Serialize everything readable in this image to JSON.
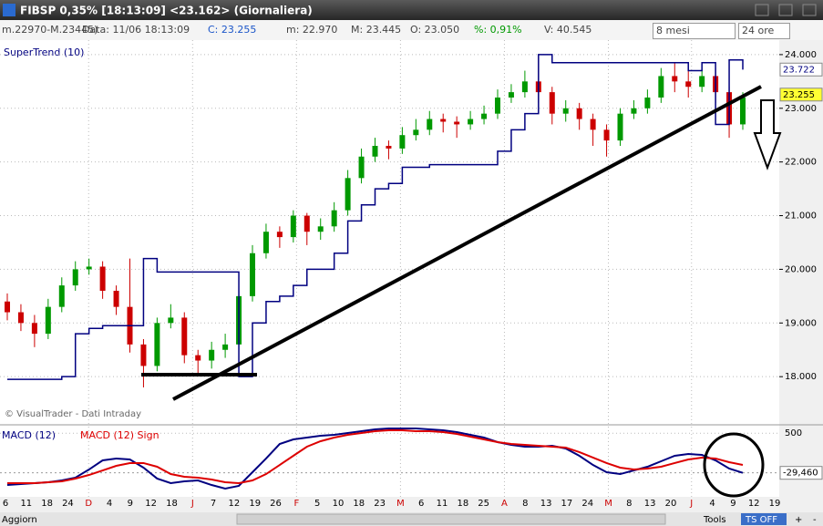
{
  "window": {
    "title": "FIBSP 0,35% [18:13:09]  <23.162> (Giornaliera)",
    "info": [
      "m.22970-M.23445)",
      "Data: 11/06 18:13:09",
      "C: 23.255",
      "m: 22.970",
      "M: 23.445",
      "O: 23.050",
      "%: 0,91%",
      "V: 40.545"
    ],
    "selects": [
      "8 mesi",
      "24 ore"
    ],
    "footer": [
      "Aggiorn",
      "Tools",
      "TS OFF",
      "+",
      "-"
    ]
  },
  "chart_data": [
    {
      "type": "candlestick",
      "legend": "SuperTrend (10)",
      "source": "© VisualTrader - Dati Intraday",
      "open": [
        19.4,
        19.2,
        19.0,
        18.8,
        19.3,
        19.7,
        20.0,
        20.05,
        19.6,
        19.3,
        18.6,
        18.2,
        19.0,
        19.1,
        18.4,
        18.3,
        18.5,
        18.6,
        19.5,
        20.3,
        20.7,
        20.6,
        21.0,
        20.7,
        20.8,
        21.1,
        21.7,
        22.1,
        22.3,
        22.25,
        22.5,
        22.6,
        22.8,
        22.75,
        22.7,
        22.8,
        22.9,
        23.2,
        23.3,
        23.5,
        23.3,
        22.9,
        23.0,
        22.8,
        22.6,
        22.4,
        22.9,
        23.0,
        23.2,
        23.6,
        23.5,
        23.4,
        23.6,
        23.3,
        22.7
      ],
      "high": [
        19.55,
        19.35,
        19.15,
        19.45,
        19.85,
        20.15,
        20.2,
        20.15,
        19.7,
        20.2,
        18.7,
        19.1,
        19.35,
        19.2,
        18.5,
        18.65,
        18.8,
        19.6,
        20.45,
        20.85,
        20.8,
        21.1,
        21.05,
        20.95,
        21.25,
        21.85,
        22.25,
        22.45,
        22.4,
        22.65,
        22.8,
        22.95,
        22.9,
        22.85,
        22.95,
        23.05,
        23.35,
        23.45,
        23.7,
        24.0,
        23.4,
        23.15,
        23.1,
        22.9,
        22.7,
        23.0,
        23.15,
        23.35,
        23.75,
        23.85,
        23.7,
        23.85,
        23.75,
        23.4,
        23.3
      ],
      "low": [
        19.05,
        18.85,
        18.55,
        18.7,
        19.2,
        19.6,
        19.9,
        19.45,
        19.15,
        18.45,
        17.8,
        18.1,
        18.9,
        18.25,
        18.05,
        18.15,
        18.35,
        18.5,
        19.4,
        20.2,
        20.4,
        20.5,
        20.45,
        20.55,
        20.7,
        21.0,
        21.6,
        22.0,
        22.05,
        22.15,
        22.4,
        22.5,
        22.55,
        22.45,
        22.6,
        22.7,
        22.8,
        23.1,
        23.2,
        23.1,
        22.7,
        22.75,
        22.6,
        22.3,
        22.1,
        22.3,
        22.8,
        22.9,
        23.1,
        23.3,
        23.2,
        23.3,
        23.1,
        22.45,
        22.6
      ],
      "close": [
        19.2,
        19.0,
        18.8,
        19.3,
        19.7,
        20.0,
        20.05,
        19.6,
        19.3,
        18.6,
        18.2,
        19.0,
        19.1,
        18.4,
        18.3,
        18.5,
        18.6,
        19.5,
        20.3,
        20.7,
        20.6,
        21.0,
        20.7,
        20.8,
        21.1,
        21.7,
        22.1,
        22.3,
        22.25,
        22.5,
        22.6,
        22.8,
        22.75,
        22.7,
        22.8,
        22.9,
        23.2,
        23.3,
        23.5,
        23.3,
        22.9,
        23.0,
        22.8,
        22.6,
        22.4,
        22.9,
        23.0,
        23.2,
        23.6,
        23.5,
        23.4,
        23.6,
        23.3,
        22.7,
        23.2
      ],
      "up_color": "#009900",
      "down_color": "#cc0000",
      "overlay": {
        "name": "SuperTrend (10)",
        "color": "#000080",
        "values": [
          17.95,
          17.95,
          17.95,
          17.95,
          18.0,
          18.8,
          18.9,
          18.95,
          18.95,
          18.95,
          20.2,
          19.95,
          19.95,
          19.95,
          19.95,
          19.95,
          19.95,
          18.0,
          19.0,
          19.4,
          19.5,
          19.7,
          20.0,
          20.0,
          20.3,
          20.9,
          21.2,
          21.5,
          21.6,
          21.9,
          21.9,
          21.95,
          21.95,
          21.95,
          21.95,
          21.95,
          22.2,
          22.6,
          22.9,
          24.0,
          23.85,
          23.85,
          23.85,
          23.85,
          23.85,
          23.85,
          23.85,
          23.85,
          23.85,
          23.85,
          23.7,
          23.85,
          22.7,
          23.9,
          23.72
        ]
      },
      "ylim": [
        17.12,
        24.27
      ],
      "yticks": [
        {
          "value": 18,
          "label": "18.000"
        },
        {
          "value": 19,
          "label": "19.000"
        },
        {
          "value": 20,
          "label": "20.000"
        },
        {
          "value": 21,
          "label": "21.000"
        },
        {
          "value": 22,
          "label": "22.000"
        },
        {
          "value": 23,
          "label": "23.000"
        },
        {
          "value": 24,
          "label": "24.000"
        }
      ],
      "last_values": [
        23.722,
        23.255
      ],
      "grid": true,
      "x_labels": [
        "6",
        "11",
        "18",
        "24",
        "D",
        "4",
        "9",
        "12",
        "18",
        "J",
        "7",
        "12",
        "19",
        "26",
        "F",
        "5",
        "10",
        "18",
        "23",
        "M",
        "6",
        "11",
        "18",
        "25",
        "A",
        "8",
        "13",
        "17",
        "24",
        "M",
        "8",
        "13",
        "20",
        "J",
        "4",
        "9",
        "12",
        "19"
      ],
      "month_color": "#cc0000"
    },
    {
      "type": "line",
      "series": [
        {
          "name": "MACD (12)",
          "color": "#000080",
          "values": [
            -192,
            -180,
            -167,
            -155,
            -131,
            -94,
            15,
            137,
            162,
            149,
            40,
            -106,
            -167,
            -143,
            -131,
            -192,
            -240,
            -204,
            -21,
            162,
            356,
            417,
            442,
            466,
            478,
            503,
            527,
            551,
            564,
            564,
            564,
            551,
            539,
            515,
            478,
            442,
            381,
            344,
            320,
            320,
            332,
            296,
            198,
            76,
            -21,
            -46,
            3,
            52,
            125,
            198,
            222,
            210,
            137,
            28,
            -29.46
          ]
        },
        {
          "name": "MACD (12) Sign",
          "color": "#dd0000",
          "values": [
            -167,
            -167,
            -167,
            -155,
            -143,
            -106,
            -58,
            3,
            64,
            101,
            101,
            52,
            -46,
            -82,
            -94,
            -119,
            -155,
            -167,
            -131,
            -46,
            76,
            198,
            320,
            393,
            442,
            478,
            503,
            527,
            539,
            539,
            527,
            527,
            515,
            490,
            454,
            417,
            381,
            356,
            344,
            332,
            320,
            308,
            247,
            174,
            101,
            40,
            15,
            28,
            52,
            101,
            149,
            174,
            162,
            113,
            76
          ]
        }
      ],
      "ylim": [
        -350,
        600
      ],
      "yticks": [
        500
      ],
      "marker": {
        "value": -29.46,
        "label": "-29,460"
      }
    }
  ]
}
